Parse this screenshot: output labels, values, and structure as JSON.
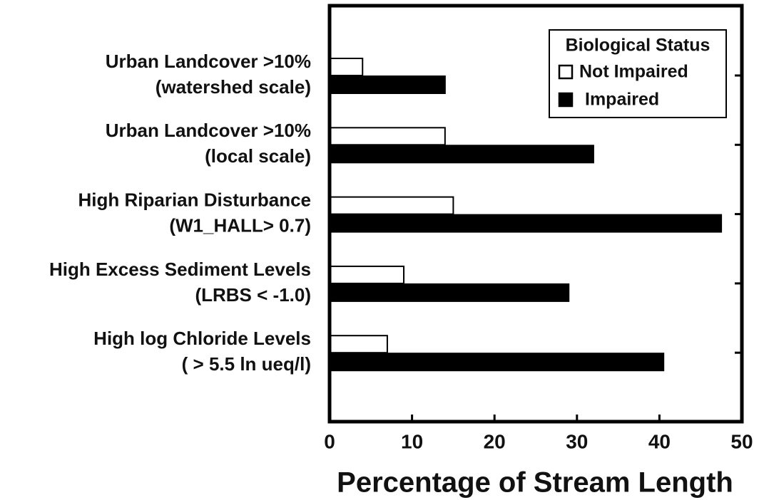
{
  "chart_data": {
    "type": "bar",
    "orientation": "horizontal",
    "x_label": "Percentage of Stream Length",
    "legend_title": "Biological Status",
    "categories": [
      [
        "Urban Landcover >10%",
        "(watershed scale)"
      ],
      [
        "Urban Landcover >10%",
        "(local scale)"
      ],
      [
        "High Riparian Disturbance",
        "(W1_HALL> 0.7)"
      ],
      [
        "High Excess Sediment Levels",
        "(LRBS < -1.0)"
      ],
      [
        "High log Chloride Levels",
        "( > 5.5 ln ueq/l)"
      ]
    ],
    "series": [
      {
        "name": "Not Impaired",
        "color": "#ffffff",
        "values": [
          4,
          14,
          15,
          9,
          7
        ]
      },
      {
        "name": "Impaired",
        "color": "#000000",
        "values": [
          14,
          32,
          47.5,
          29,
          40.5
        ]
      }
    ],
    "xlim": [
      0,
      50
    ],
    "xticks": [
      0,
      10,
      20,
      30,
      40,
      50
    ],
    "legend": "upper right"
  }
}
